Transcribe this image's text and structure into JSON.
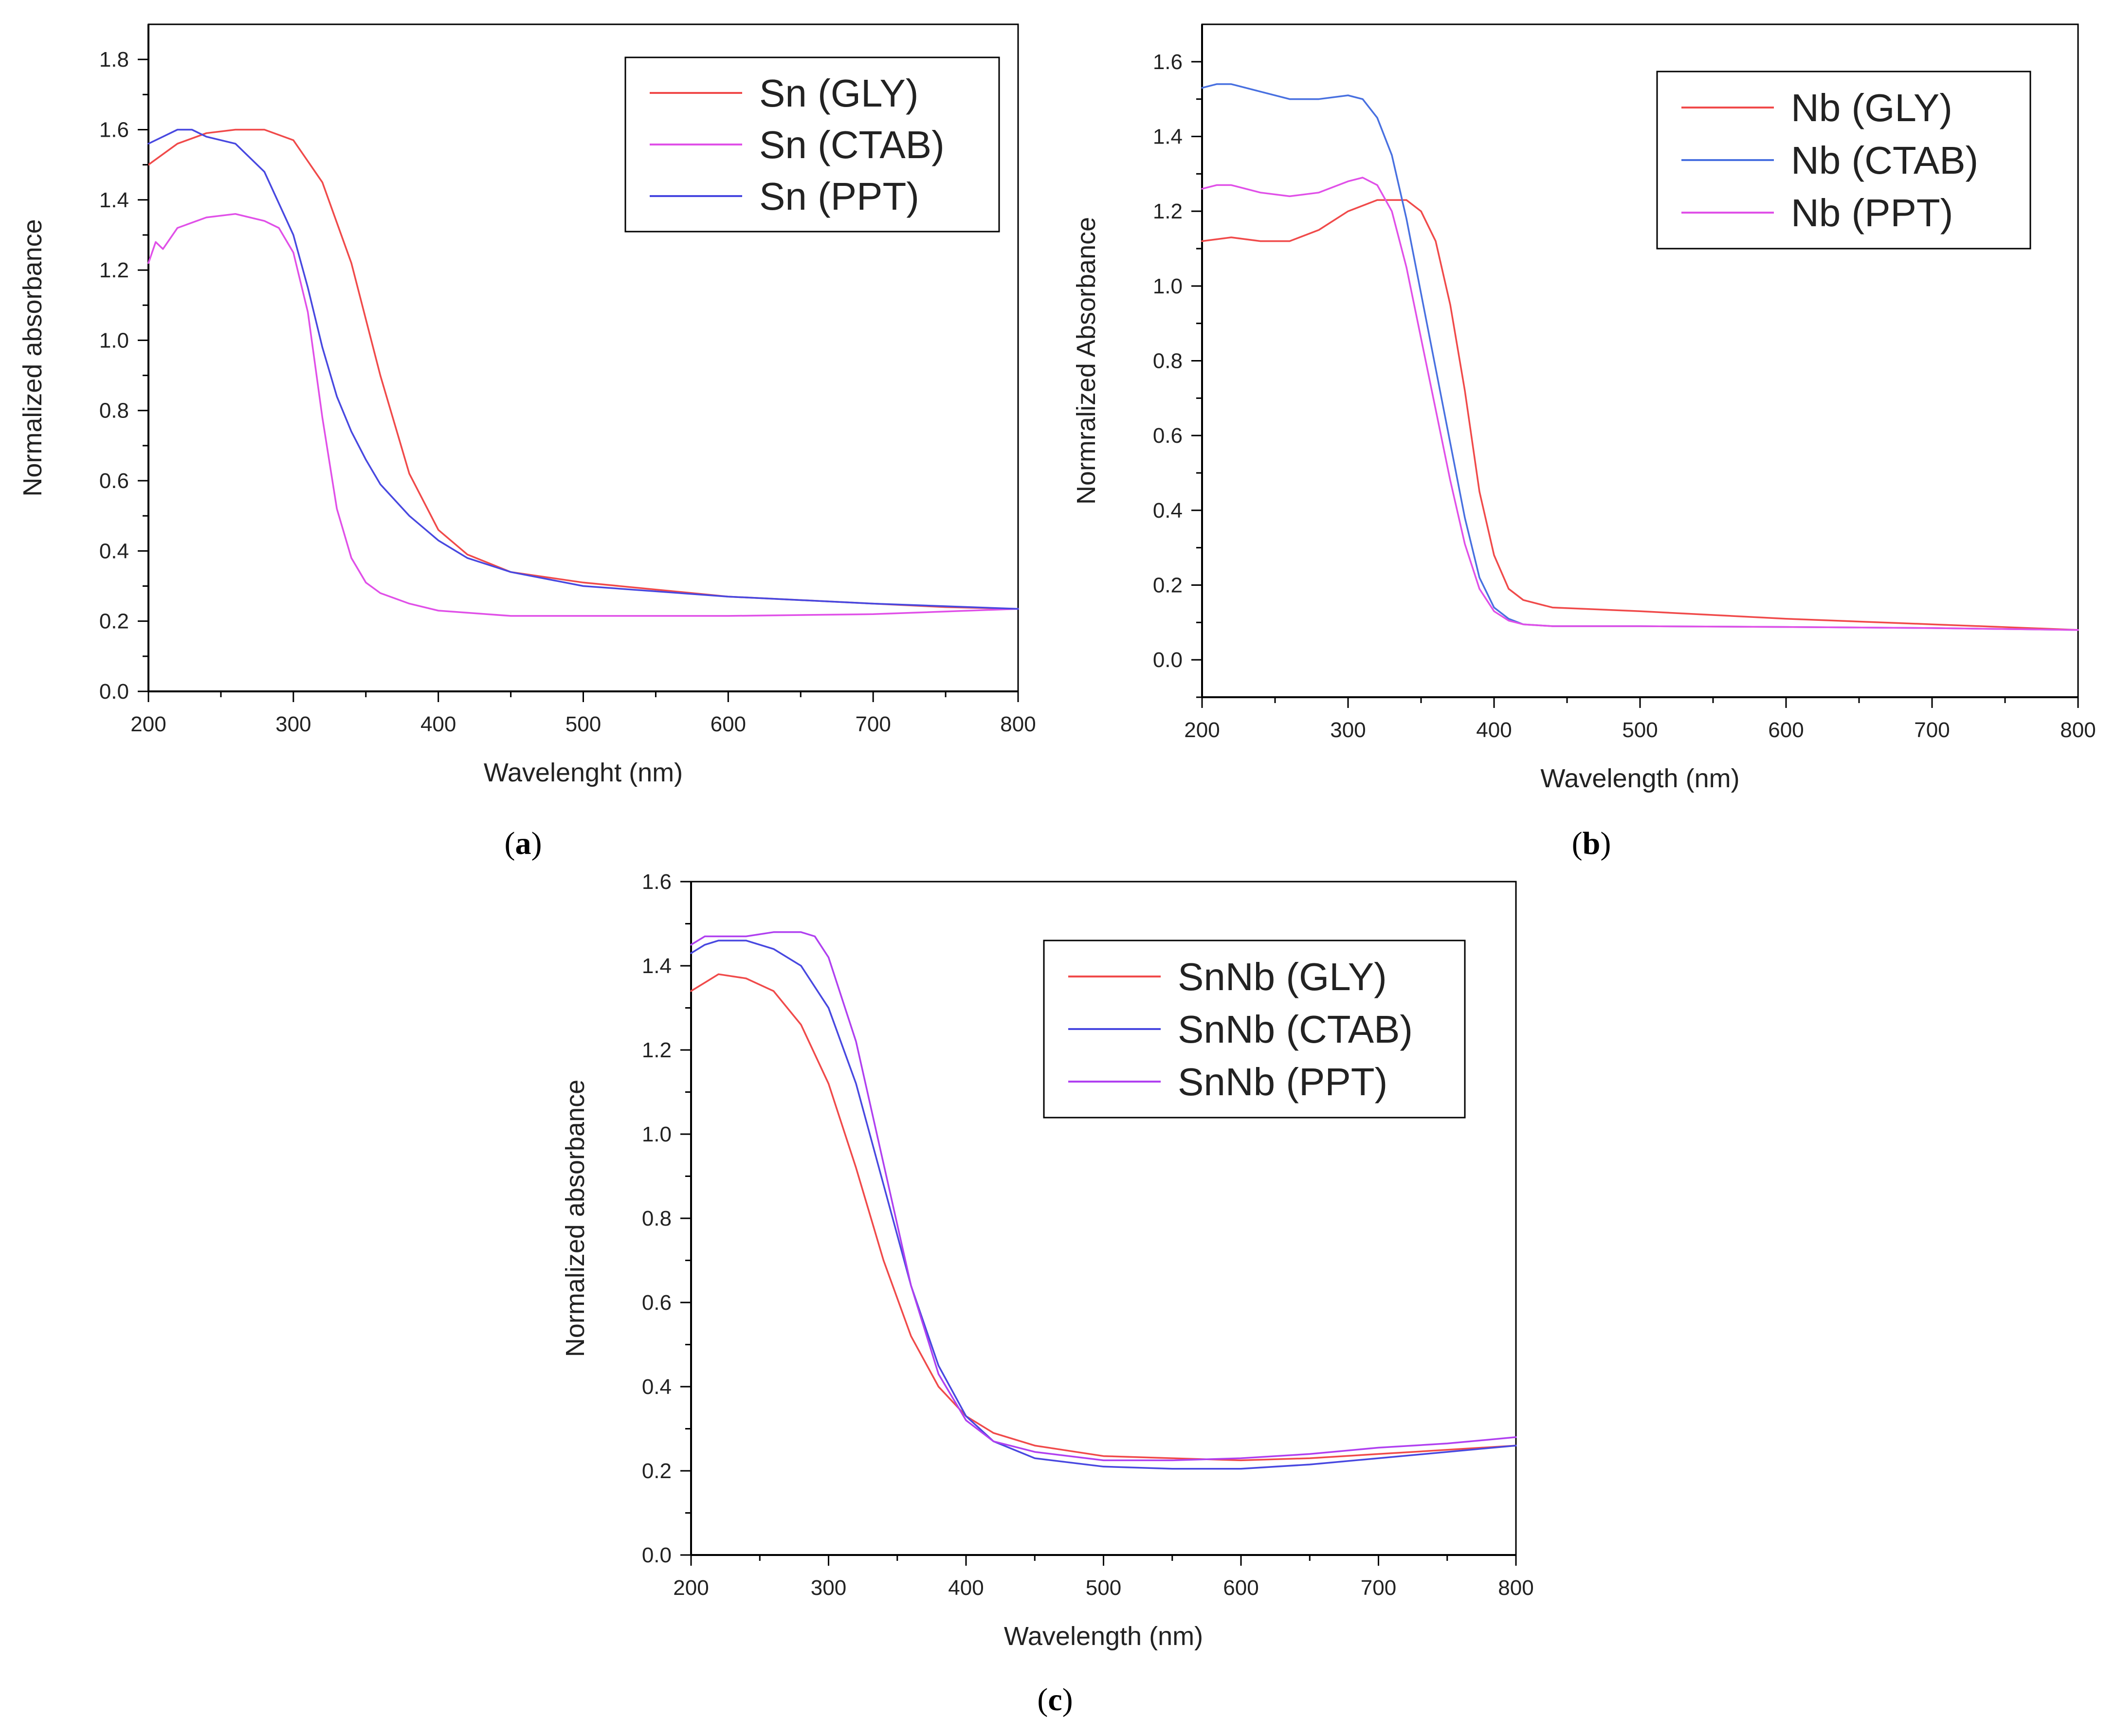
{
  "chart_data": [
    {
      "panel": "a",
      "type": "line",
      "xlabel": "Wavelenght (nm)",
      "ylabel": "Normalized absorbance",
      "xlim": [
        200,
        800
      ],
      "ylim": [
        0.0,
        1.9
      ],
      "xticks": [
        200,
        300,
        400,
        500,
        600,
        700,
        800
      ],
      "yticks": [
        0.0,
        0.2,
        0.4,
        0.6,
        0.8,
        1.0,
        1.2,
        1.4,
        1.6,
        1.8
      ],
      "ytick_labels": [
        "0.0",
        "0.2",
        "0.4",
        "0.6",
        "0.8",
        "1.0",
        "1.2",
        "1.4",
        "1.6",
        "1.8"
      ],
      "legend_position": "top-right",
      "series": [
        {
          "name": "Sn (GLY)",
          "color": "#f04a4a",
          "x": [
            200,
            220,
            240,
            260,
            280,
            300,
            320,
            340,
            360,
            380,
            400,
            420,
            450,
            500,
            550,
            600,
            650,
            700,
            750,
            800
          ],
          "y": [
            1.5,
            1.56,
            1.59,
            1.6,
            1.6,
            1.57,
            1.45,
            1.22,
            0.9,
            0.62,
            0.46,
            0.39,
            0.34,
            0.31,
            0.29,
            0.27,
            0.26,
            0.25,
            0.24,
            0.235
          ]
        },
        {
          "name": "Sn (CTAB)",
          "color": "#e050e8",
          "x": [
            200,
            205,
            210,
            220,
            240,
            260,
            280,
            290,
            300,
            310,
            320,
            330,
            340,
            350,
            360,
            380,
            400,
            450,
            500,
            600,
            700,
            800
          ],
          "y": [
            1.22,
            1.28,
            1.26,
            1.32,
            1.35,
            1.36,
            1.34,
            1.32,
            1.25,
            1.08,
            0.78,
            0.52,
            0.38,
            0.31,
            0.28,
            0.25,
            0.23,
            0.215,
            0.215,
            0.215,
            0.22,
            0.235
          ]
        },
        {
          "name": "Sn (PPT)",
          "color": "#4848e0",
          "x": [
            200,
            210,
            220,
            230,
            240,
            260,
            280,
            300,
            310,
            320,
            330,
            340,
            350,
            360,
            380,
            400,
            420,
            450,
            500,
            600,
            700,
            800
          ],
          "y": [
            1.56,
            1.58,
            1.6,
            1.6,
            1.58,
            1.56,
            1.48,
            1.3,
            1.15,
            0.98,
            0.84,
            0.74,
            0.66,
            0.59,
            0.5,
            0.43,
            0.38,
            0.34,
            0.3,
            0.27,
            0.25,
            0.235
          ]
        }
      ]
    },
    {
      "panel": "b",
      "type": "line",
      "xlabel": "Wavelength (nm)",
      "ylabel": "Normralized Absorbance",
      "xlim": [
        200,
        800
      ],
      "ylim": [
        -0.1,
        1.7
      ],
      "xticks": [
        200,
        300,
        400,
        500,
        600,
        700,
        800
      ],
      "yticks": [
        0.0,
        0.2,
        0.4,
        0.6,
        0.8,
        1.0,
        1.2,
        1.4,
        1.6
      ],
      "ytick_labels": [
        "0.0",
        "0.2",
        "0.4",
        "0.6",
        "0.8",
        "1.0",
        "1.2",
        "1.4",
        "1.6"
      ],
      "legend_position": "top-right",
      "series": [
        {
          "name": "Nb (GLY)",
          "color": "#f04a4a",
          "x": [
            200,
            220,
            240,
            260,
            280,
            300,
            320,
            340,
            350,
            360,
            370,
            380,
            390,
            400,
            410,
            420,
            440,
            500,
            600,
            700,
            800
          ],
          "y": [
            1.12,
            1.13,
            1.12,
            1.12,
            1.15,
            1.2,
            1.23,
            1.23,
            1.2,
            1.12,
            0.95,
            0.72,
            0.45,
            0.28,
            0.19,
            0.16,
            0.14,
            0.13,
            0.11,
            0.095,
            0.08
          ]
        },
        {
          "name": "Nb (CTAB)",
          "color": "#4870e0",
          "x": [
            200,
            210,
            220,
            240,
            260,
            280,
            300,
            310,
            320,
            330,
            340,
            350,
            360,
            370,
            380,
            390,
            400,
            410,
            420,
            440,
            500,
            600,
            700,
            800
          ],
          "y": [
            1.53,
            1.54,
            1.54,
            1.52,
            1.5,
            1.5,
            1.51,
            1.5,
            1.45,
            1.35,
            1.18,
            0.98,
            0.78,
            0.58,
            0.38,
            0.22,
            0.14,
            0.11,
            0.095,
            0.09,
            0.09,
            0.088,
            0.085,
            0.08
          ]
        },
        {
          "name": "Nb (PPT)",
          "color": "#e050e8",
          "x": [
            200,
            210,
            220,
            240,
            260,
            280,
            300,
            310,
            320,
            330,
            340,
            350,
            360,
            370,
            380,
            390,
            400,
            410,
            420,
            440,
            500,
            600,
            700,
            800
          ],
          "y": [
            1.26,
            1.27,
            1.27,
            1.25,
            1.24,
            1.25,
            1.28,
            1.29,
            1.27,
            1.2,
            1.05,
            0.86,
            0.67,
            0.48,
            0.31,
            0.19,
            0.13,
            0.105,
            0.095,
            0.09,
            0.09,
            0.088,
            0.085,
            0.08
          ]
        }
      ]
    },
    {
      "panel": "c",
      "type": "line",
      "xlabel": "Wavelength (nm)",
      "ylabel": "Normalized absorbance",
      "xlim": [
        200,
        800
      ],
      "ylim": [
        0.0,
        1.6
      ],
      "xticks": [
        200,
        300,
        400,
        500,
        600,
        700,
        800
      ],
      "yticks": [
        0.0,
        0.2,
        0.4,
        0.6,
        0.8,
        1.0,
        1.2,
        1.4,
        1.6
      ],
      "ytick_labels": [
        "0.0",
        "0.2",
        "0.4",
        "0.6",
        "0.8",
        "1.0",
        "1.2",
        "1.4",
        "1.6"
      ],
      "legend_position": "top-right",
      "series": [
        {
          "name": "SnNb (GLY)",
          "color": "#f04a4a",
          "x": [
            200,
            210,
            220,
            240,
            260,
            280,
            300,
            320,
            340,
            360,
            380,
            400,
            420,
            450,
            500,
            550,
            600,
            650,
            700,
            750,
            800
          ],
          "y": [
            1.34,
            1.36,
            1.38,
            1.37,
            1.34,
            1.26,
            1.12,
            0.92,
            0.7,
            0.52,
            0.4,
            0.33,
            0.29,
            0.26,
            0.235,
            0.23,
            0.225,
            0.23,
            0.24,
            0.25,
            0.26
          ]
        },
        {
          "name": "SnNb (CTAB)",
          "color": "#4848e0",
          "x": [
            200,
            210,
            220,
            240,
            260,
            280,
            300,
            320,
            340,
            360,
            380,
            400,
            420,
            450,
            500,
            550,
            600,
            650,
            700,
            750,
            800
          ],
          "y": [
            1.43,
            1.45,
            1.46,
            1.46,
            1.44,
            1.4,
            1.3,
            1.12,
            0.88,
            0.64,
            0.45,
            0.33,
            0.27,
            0.23,
            0.21,
            0.205,
            0.205,
            0.215,
            0.23,
            0.245,
            0.26
          ]
        },
        {
          "name": "SnNb (PPT)",
          "color": "#b040f0",
          "x": [
            200,
            210,
            220,
            240,
            260,
            280,
            290,
            300,
            320,
            340,
            360,
            380,
            400,
            420,
            450,
            500,
            550,
            600,
            650,
            700,
            750,
            800
          ],
          "y": [
            1.45,
            1.47,
            1.47,
            1.47,
            1.48,
            1.48,
            1.47,
            1.42,
            1.22,
            0.93,
            0.64,
            0.43,
            0.32,
            0.27,
            0.245,
            0.225,
            0.225,
            0.23,
            0.24,
            0.255,
            0.265,
            0.28
          ]
        }
      ]
    }
  ],
  "figure_labels": [
    {
      "open": "(",
      "letter": "a",
      "close": ")"
    },
    {
      "open": "(",
      "letter": "b",
      "close": ")"
    },
    {
      "open": "(",
      "letter": "c",
      "close": ")"
    }
  ]
}
